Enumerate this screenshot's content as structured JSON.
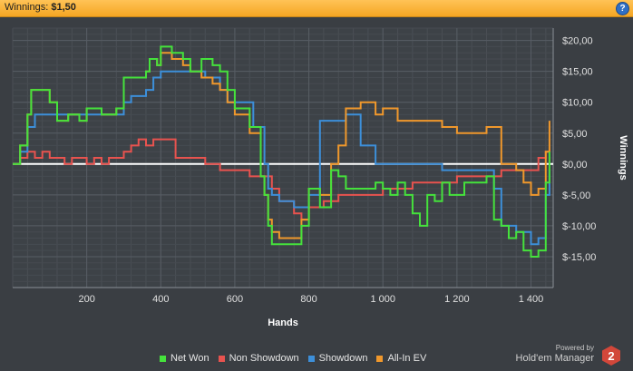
{
  "header": {
    "label": "Winnings:",
    "value": "$1,50",
    "help_icon": "?"
  },
  "colors": {
    "net_won": "#45e23c",
    "non_showdown": "#e8534f",
    "showdown": "#3d8fd9",
    "allin_ev": "#f0982c",
    "background": "#3a3e43",
    "zero_line": "#ffffff"
  },
  "powered": {
    "small": "Powered by",
    "brand": "Hold'em Manager",
    "logo_number": "2"
  },
  "chart_data": {
    "type": "line",
    "xlabel": "Hands",
    "ylabel": "Winnings",
    "xlim": [
      0,
      1460
    ],
    "ylim": [
      -20,
      22
    ],
    "x_ticks": [
      200,
      400,
      600,
      800,
      1000,
      1200,
      1400
    ],
    "x_tick_labels": [
      "200",
      "400",
      "600",
      "800",
      "1 000",
      "1 200",
      "1 400"
    ],
    "y_ticks": [
      20,
      15,
      10,
      5,
      0,
      -5,
      -10,
      -15
    ],
    "y_tick_labels": [
      "$20,00",
      "$15,00",
      "$10,00",
      "$5,00",
      "$0,00",
      "$-5,00",
      "$-10,00",
      "$-15,00"
    ],
    "grid": true,
    "legend_position": "bottom",
    "series": [
      {
        "name": "Net Won",
        "color": "#45e23c",
        "x": [
          0,
          20,
          40,
          50,
          80,
          100,
          120,
          150,
          180,
          200,
          240,
          280,
          300,
          340,
          360,
          370,
          390,
          400,
          430,
          460,
          480,
          510,
          540,
          560,
          580,
          600,
          640,
          670,
          680,
          690,
          700,
          720,
          760,
          780,
          800,
          830,
          860,
          880,
          900,
          940,
          980,
          1000,
          1020,
          1040,
          1060,
          1080,
          1100,
          1120,
          1140,
          1160,
          1180,
          1220,
          1260,
          1280,
          1300,
          1320,
          1340,
          1360,
          1380,
          1400,
          1420,
          1440,
          1450
        ],
        "y": [
          0,
          3,
          8,
          12,
          12,
          10,
          7,
          8,
          7,
          9,
          8,
          9,
          14,
          14,
          15,
          17,
          16,
          19,
          18,
          17,
          15,
          17,
          16,
          15,
          12,
          9,
          6,
          -2,
          -5,
          -10,
          -13,
          -13,
          -13,
          -10,
          -4,
          -7,
          -1,
          -2,
          -4,
          -4,
          -3,
          -4,
          -5,
          -3,
          -5,
          -8,
          -10,
          -5,
          -6,
          -3,
          -5,
          -3,
          -3,
          -2,
          -9,
          -10,
          -12,
          -11,
          -14,
          -15,
          -14,
          -3,
          2
        ]
      },
      {
        "name": "Non Showdown",
        "color": "#e8534f",
        "x": [
          0,
          20,
          40,
          60,
          80,
          100,
          120,
          140,
          160,
          180,
          200,
          220,
          240,
          260,
          280,
          300,
          320,
          340,
          360,
          380,
          400,
          440,
          480,
          520,
          560,
          600,
          640,
          680,
          700,
          720,
          760,
          780,
          800,
          840,
          880,
          920,
          960,
          1000,
          1040,
          1080,
          1120,
          1160,
          1200,
          1240,
          1280,
          1320,
          1360,
          1400,
          1420,
          1440,
          1450
        ],
        "y": [
          0,
          1,
          2,
          1,
          2,
          1,
          1,
          0,
          1,
          1,
          0,
          1,
          0,
          1,
          1,
          2,
          3,
          4,
          3,
          4,
          4,
          1,
          1,
          0,
          -1,
          -1,
          -2,
          -2,
          -4,
          -6,
          -8,
          -9,
          -7,
          -6,
          -5,
          -5,
          -5,
          -4,
          -4,
          -3,
          -3,
          -3,
          -2,
          -2,
          -2,
          -1,
          -1,
          -1,
          1,
          2,
          2
        ]
      },
      {
        "name": "Showdown",
        "color": "#3d8fd9",
        "x": [
          0,
          20,
          40,
          60,
          100,
          150,
          200,
          260,
          300,
          320,
          360,
          380,
          400,
          440,
          480,
          520,
          560,
          580,
          600,
          650,
          680,
          690,
          700,
          720,
          760,
          800,
          830,
          860,
          880,
          900,
          940,
          980,
          1000,
          1040,
          1080,
          1120,
          1160,
          1200,
          1240,
          1280,
          1300,
          1320,
          1360,
          1400,
          1420,
          1440,
          1450
        ],
        "y": [
          0,
          2,
          6,
          8,
          8,
          8,
          8,
          8,
          10,
          11,
          12,
          14,
          15,
          15,
          15,
          14,
          12,
          10,
          10,
          6,
          0,
          -4,
          -5,
          -6,
          -7,
          -5,
          7,
          7,
          7,
          8,
          3,
          0,
          0,
          0,
          0,
          0,
          -1,
          -1,
          -1,
          -1,
          -4,
          -10,
          -11,
          -13,
          -12,
          -5,
          -1
        ]
      },
      {
        "name": "All-In EV",
        "color": "#f0982c",
        "x": [
          0,
          20,
          40,
          50,
          80,
          100,
          120,
          150,
          180,
          200,
          240,
          280,
          300,
          340,
          360,
          370,
          390,
          400,
          430,
          460,
          480,
          510,
          540,
          560,
          580,
          600,
          640,
          670,
          680,
          690,
          700,
          720,
          760,
          780,
          800,
          830,
          860,
          880,
          900,
          940,
          980,
          1000,
          1040,
          1080,
          1120,
          1160,
          1200,
          1240,
          1280,
          1320,
          1340,
          1360,
          1380,
          1400,
          1420,
          1440,
          1450
        ],
        "y": [
          0,
          3,
          8,
          12,
          12,
          10,
          7,
          8,
          7,
          9,
          8,
          9,
          14,
          14,
          15,
          17,
          16,
          18,
          17,
          16,
          15,
          14,
          13,
          12,
          10,
          8,
          5,
          -2,
          -5,
          -9,
          -11,
          -12,
          -12,
          -9,
          -4,
          -5,
          0,
          3,
          9,
          10,
          8,
          9,
          7,
          7,
          7,
          6,
          5,
          5,
          6,
          0,
          0,
          -1,
          -3,
          -5,
          -4,
          2,
          7
        ]
      }
    ]
  }
}
